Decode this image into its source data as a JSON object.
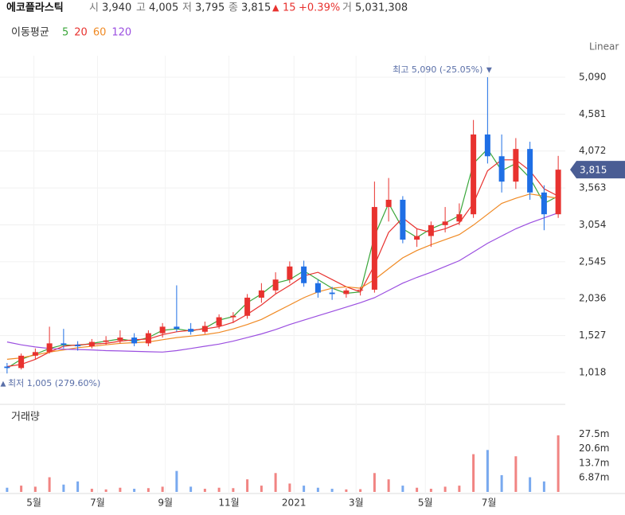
{
  "chart_data": {
    "type": "candlestick",
    "header": {
      "name": "에코플라스틱",
      "open_label": "시",
      "open": "3,940",
      "high_label": "고",
      "high": "4,005",
      "low_label": "저",
      "low": "3,795",
      "close_label": "종",
      "close": "3,815",
      "change_mark": "▲",
      "change": "15",
      "change_pct": "+0.39%",
      "volume_label": "거",
      "volume": "5,031,308"
    },
    "ma_title": "이동평균",
    "scale_label": "Linear",
    "up_color": "#e8322f",
    "down_color": "#1f6fe5",
    "ohlc": [
      [
        1100,
        1150,
        1005,
        1080
      ],
      [
        1080,
        1280,
        1060,
        1250
      ],
      [
        1250,
        1350,
        1200,
        1300
      ],
      [
        1300,
        1650,
        1280,
        1420
      ],
      [
        1420,
        1620,
        1350,
        1400
      ],
      [
        1400,
        1450,
        1320,
        1380
      ],
      [
        1380,
        1480,
        1350,
        1440
      ],
      [
        1440,
        1520,
        1400,
        1460
      ],
      [
        1460,
        1600,
        1420,
        1500
      ],
      [
        1500,
        1560,
        1380,
        1420
      ],
      [
        1420,
        1600,
        1380,
        1560
      ],
      [
        1560,
        1700,
        1500,
        1650
      ],
      [
        1650,
        2220,
        1580,
        1620
      ],
      [
        1620,
        1700,
        1540,
        1580
      ],
      [
        1580,
        1720,
        1550,
        1660
      ],
      [
        1660,
        1820,
        1620,
        1780
      ],
      [
        1780,
        1850,
        1700,
        1800
      ],
      [
        1800,
        2100,
        1760,
        2050
      ],
      [
        2050,
        2250,
        1980,
        2150
      ],
      [
        2150,
        2400,
        2100,
        2300
      ],
      [
        2300,
        2550,
        2250,
        2480
      ],
      [
        2480,
        2560,
        2200,
        2250
      ],
      [
        2250,
        2300,
        2050,
        2120
      ],
      [
        2120,
        2200,
        2020,
        2100
      ],
      [
        2100,
        2180,
        2050,
        2150
      ],
      [
        2150,
        2200,
        2080,
        2160
      ],
      [
        2160,
        3650,
        2120,
        3300
      ],
      [
        3300,
        3700,
        3100,
        3400
      ],
      [
        3400,
        3450,
        2800,
        2850
      ],
      [
        2850,
        3000,
        2750,
        2900
      ],
      [
        2900,
        3100,
        2750,
        3050
      ],
      [
        3050,
        3300,
        2950,
        3100
      ],
      [
        3100,
        3350,
        3050,
        3200
      ],
      [
        3200,
        4500,
        3150,
        4300
      ],
      [
        4300,
        5090,
        3900,
        4000
      ],
      [
        4000,
        4300,
        3500,
        3650
      ],
      [
        3650,
        4250,
        3550,
        4100
      ],
      [
        4100,
        4200,
        3400,
        3500
      ],
      [
        3500,
        3600,
        2980,
        3200
      ],
      [
        3200,
        4005,
        3150,
        3815
      ]
    ],
    "series": [
      {
        "name": "5",
        "color": "#3aa63a",
        "values": [
          1080,
          1200,
          1270,
          1350,
          1400,
          1390,
          1420,
          1450,
          1480,
          1450,
          1500,
          1600,
          1620,
          1590,
          1630,
          1740,
          1790,
          1980,
          2100,
          2250,
          2300,
          2420,
          2300,
          2180,
          2110,
          2130,
          2900,
          3350,
          3000,
          2880,
          3000,
          3080,
          3180,
          3900,
          4100,
          3800,
          3900,
          3700,
          3350,
          3450
        ]
      },
      {
        "name": "20",
        "color": "#e8322f",
        "values": [
          1100,
          1130,
          1200,
          1300,
          1380,
          1400,
          1410,
          1420,
          1450,
          1470,
          1480,
          1540,
          1580,
          1600,
          1620,
          1650,
          1710,
          1820,
          1950,
          2100,
          2220,
          2350,
          2400,
          2300,
          2200,
          2130,
          2500,
          2950,
          3150,
          3000,
          2950,
          3000,
          3080,
          3350,
          3800,
          3950,
          3950,
          3800,
          3550,
          3450
        ]
      },
      {
        "name": "60",
        "color": "#f08a24",
        "values": [
          1200,
          1220,
          1260,
          1300,
          1330,
          1360,
          1380,
          1400,
          1420,
          1430,
          1440,
          1470,
          1500,
          1520,
          1540,
          1570,
          1620,
          1680,
          1750,
          1850,
          1950,
          2050,
          2130,
          2180,
          2200,
          2180,
          2300,
          2450,
          2600,
          2700,
          2780,
          2850,
          2920,
          3050,
          3200,
          3350,
          3420,
          3480,
          3450,
          3420
        ]
      },
      {
        "name": "120",
        "color": "#9b4fe0",
        "values": [
          1440,
          1400,
          1370,
          1350,
          1340,
          1335,
          1330,
          1320,
          1315,
          1310,
          1305,
          1300,
          1320,
          1350,
          1380,
          1410,
          1450,
          1500,
          1550,
          1610,
          1680,
          1740,
          1800,
          1860,
          1920,
          1980,
          2050,
          2150,
          2250,
          2330,
          2400,
          2480,
          2560,
          2680,
          2800,
          2900,
          3000,
          3080,
          3150,
          3220
        ]
      }
    ],
    "xlim": [
      -0.5,
      39.5
    ],
    "xticks": [
      {
        "value": 1.9,
        "label": "5월"
      },
      {
        "value": 6.4,
        "label": "7월"
      },
      {
        "value": 11.2,
        "label": "9월"
      },
      {
        "value": 15.7,
        "label": "11월"
      },
      {
        "value": 20.3,
        "label": "2021"
      },
      {
        "value": 24.7,
        "label": "3월"
      },
      {
        "value": 29.6,
        "label": "5월"
      },
      {
        "value": 34.1,
        "label": "7월"
      }
    ],
    "ylim": [
      612,
      5331
    ],
    "yticks": [
      {
        "value": 1018,
        "label": "1,018"
      },
      {
        "value": 1527,
        "label": "1,527"
      },
      {
        "value": 2036,
        "label": "2,036"
      },
      {
        "value": 2545,
        "label": "2,545"
      },
      {
        "value": 3054,
        "label": "3,054"
      },
      {
        "value": 3563,
        "label": "3,563"
      },
      {
        "value": 4072,
        "label": "4,072"
      },
      {
        "value": 4581,
        "label": "4,581"
      },
      {
        "value": 5090,
        "label": "5,090"
      }
    ],
    "grid": true,
    "last_price": {
      "value": 3815,
      "label": "3,815"
    },
    "high_note": {
      "value": 5090,
      "label": "최고 5,090 (-25.05%)",
      "marker": "▼"
    },
    "low_note": {
      "value": 1005,
      "label": "최저 1,005 (279.60%)",
      "marker": "▲"
    },
    "volume": {
      "title": "거래량",
      "values": [
        2000000,
        3000000,
        2500000,
        7000000,
        3500000,
        5000000,
        1500000,
        1200000,
        2000000,
        1500000,
        1800000,
        2500000,
        10000000,
        2500000,
        1500000,
        2000000,
        1800000,
        6000000,
        3000000,
        9000000,
        4000000,
        3000000,
        2000000,
        1500000,
        1200000,
        1300000,
        9000000,
        6000000,
        3000000,
        2000000,
        1500000,
        2500000,
        3000000,
        18000000,
        20000000,
        8000000,
        17000000,
        7000000,
        5000000,
        27000000
      ],
      "ylim": [
        0,
        41000000
      ],
      "yticks": [
        {
          "value": 6870000,
          "label": "6.87m"
        },
        {
          "value": 13700000,
          "label": "13.7m"
        },
        {
          "value": 20600000,
          "label": "20.6m"
        },
        {
          "value": 27500000,
          "label": "27.5m"
        }
      ]
    }
  }
}
